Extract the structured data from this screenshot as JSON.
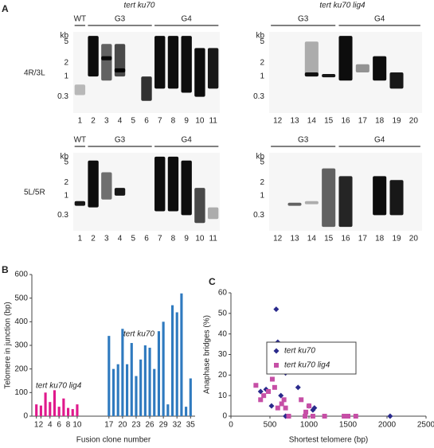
{
  "panel_letters": [
    "A",
    "B",
    "C"
  ],
  "columns": [
    "tert ku70",
    "tert ku70 lig4"
  ],
  "rows": [
    "4R/3L",
    "5L/5R"
  ],
  "gels": [
    {
      "groups": [
        "WT",
        "G3",
        "G4"
      ],
      "kb_label": "kb",
      "kb_ticks": [
        "5",
        "2",
        "1",
        "0.3"
      ],
      "lanes": [
        "1",
        "2",
        "3",
        "4",
        "5",
        "6",
        "7",
        "8",
        "9",
        "10",
        "11"
      ]
    },
    {
      "groups": [
        "G3",
        "G4"
      ],
      "kb_label": "kb",
      "kb_ticks": [
        "5",
        "2",
        "1",
        "0.3"
      ],
      "lanes": [
        "12",
        "13",
        "14",
        "15",
        "16",
        "17",
        "18",
        "19",
        "20"
      ]
    },
    {
      "groups": [
        "WT",
        "G3",
        "G4"
      ],
      "kb_label": "kb",
      "kb_ticks": [
        "5",
        "2",
        "1",
        "0.3"
      ],
      "lanes": [
        "1",
        "2",
        "3",
        "4",
        "5",
        "6",
        "7",
        "8",
        "9",
        "10",
        "11"
      ]
    },
    {
      "groups": [
        "G3",
        "G4"
      ],
      "kb_label": "kb",
      "kb_ticks": [
        "5",
        "2",
        "1",
        "0.3"
      ],
      "lanes": [
        "12",
        "13",
        "14",
        "15",
        "16",
        "17",
        "18",
        "19",
        "20"
      ]
    }
  ],
  "chart_data": [
    {
      "type": "bar",
      "x_label": "Fusion clone number",
      "y_label": "Telomere  in junction (bp)",
      "annotations": [
        "tert ku70 lig4",
        "tert ku70"
      ],
      "xlim": [
        0,
        36
      ],
      "xticks": [
        1,
        2,
        4,
        6,
        8,
        10,
        17,
        20,
        23,
        26,
        29,
        32,
        35
      ],
      "ylim": [
        0,
        600
      ],
      "yticks": [
        0,
        100,
        200,
        300,
        400,
        500,
        600
      ],
      "series": [
        {
          "name": "tert ku70 lig4",
          "color": "#e0198c",
          "x": [
            1,
            2,
            3,
            4,
            5,
            6,
            7,
            8,
            9,
            10
          ],
          "values": [
            50,
            45,
            100,
            60,
            110,
            40,
            75,
            35,
            30,
            50
          ]
        },
        {
          "name": "tert ku70",
          "color": "#2f7abf",
          "x": [
            17,
            18,
            19,
            20,
            21,
            22,
            23,
            24,
            25,
            26,
            27,
            28,
            29,
            30,
            31,
            32,
            33,
            34,
            35
          ],
          "values": [
            340,
            200,
            220,
            370,
            220,
            310,
            170,
            240,
            300,
            290,
            200,
            360,
            400,
            50,
            470,
            440,
            520,
            40,
            160
          ]
        }
      ]
    },
    {
      "type": "scatter",
      "x_label": "Shortest telomere (bp)",
      "y_label": "Anaphase bridges (%)",
      "xlim": [
        0,
        2500
      ],
      "xticks": [
        0,
        500,
        1000,
        1500,
        2000,
        2500
      ],
      "ylim": [
        0,
        60
      ],
      "yticks": [
        0,
        10,
        20,
        30,
        40,
        50,
        60
      ],
      "series": [
        {
          "name": "tert ku70",
          "color": "#2a2a8c",
          "marker": "diamond",
          "x": [
            380,
            450,
            520,
            580,
            600,
            640,
            650,
            700,
            700,
            860,
            1000,
            1050,
            1070,
            2040
          ],
          "values": [
            12,
            13,
            5,
            52,
            36,
            10,
            28,
            21,
            0,
            14,
            5,
            3,
            4,
            0
          ]
        },
        {
          "name": "tert ku70 lig4",
          "color": "#c64fa6",
          "marker": "square",
          "x": [
            320,
            380,
            420,
            480,
            530,
            560,
            600,
            650,
            680,
            700,
            740,
            900,
            950,
            960,
            1000,
            1050,
            1200,
            1450,
            1500,
            1600
          ],
          "values": [
            15,
            8,
            10,
            12,
            18,
            14,
            4,
            6,
            8,
            4,
            0,
            8,
            0,
            2,
            5,
            0,
            0,
            0,
            0,
            0
          ]
        }
      ]
    }
  ]
}
